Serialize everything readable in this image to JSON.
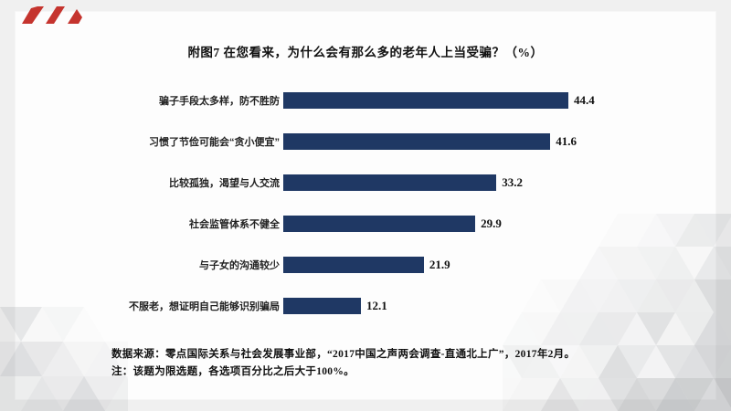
{
  "slide": {
    "title": "附图7 在您看来，为什么会有那么多的老年人上当受骗？（%）",
    "source_note": "数据来源：零点国际关系与社会发展事业部，“2017中国之声两会调查-直通北上广”，2017年2月。",
    "method_note": "注：该题为限选题，各选项百分比之后大于100%。"
  },
  "chart_data": {
    "type": "bar",
    "orientation": "horizontal",
    "title": "附图7 在您看来，为什么会有那么多的老年人上当受骗？（%）",
    "categories": [
      "骗子手段太多样，防不胜防",
      "习惯了节俭可能会“贪小便宜”",
      "比较孤独，渴望与人交流",
      "社会监管体系不健全",
      "与子女的沟通较少",
      "不服老，想证明自己能够识别骗局"
    ],
    "values": [
      44.4,
      41.6,
      33.2,
      29.9,
      21.9,
      12.1
    ],
    "value_labels": [
      "44.4",
      "41.6",
      "33.2",
      "29.9",
      "21.9",
      "12.1"
    ],
    "xlim": [
      0,
      50
    ],
    "grid": false,
    "legend": false,
    "data_labels": "outside-end",
    "bar_color": "#1f3864"
  },
  "colors": {
    "page_background": "#f0f0f0",
    "card_background": "#fdfdfd",
    "bar": "#1f3864",
    "text": "#111111",
    "accent_red": "#c5342e",
    "mosaic_gray": "#6b7076"
  }
}
